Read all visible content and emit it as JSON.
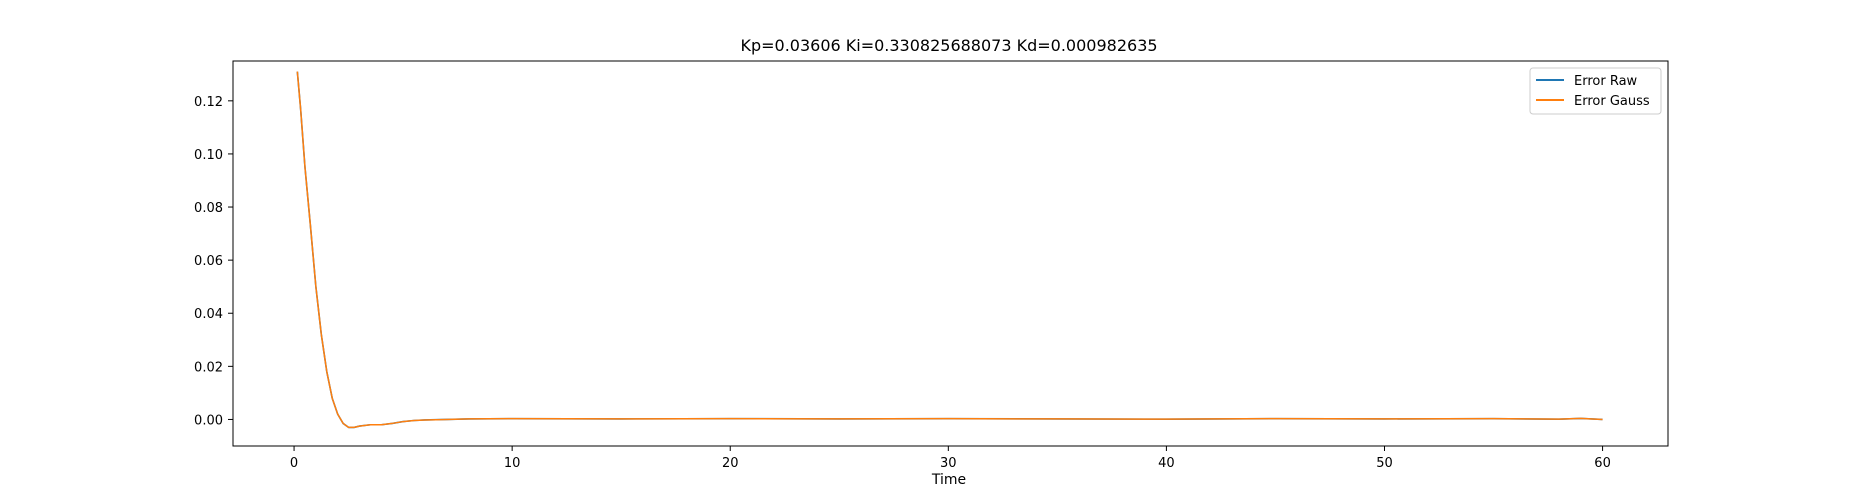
{
  "chart_data": {
    "type": "line",
    "title": "Kp=0.03606 Ki=0.330825688073 Kd=0.000982635",
    "xlabel": "Time",
    "ylabel": "",
    "xlim": [
      -2.8,
      63
    ],
    "ylim": [
      -0.01,
      0.135
    ],
    "grid": false,
    "legend_position": "top-right",
    "x_ticks": [
      0,
      10,
      20,
      30,
      40,
      50,
      60
    ],
    "x_tick_labels": [
      "0",
      "10",
      "20",
      "30",
      "40",
      "50",
      "60"
    ],
    "y_ticks": [
      0.0,
      0.02,
      0.04,
      0.06,
      0.08,
      0.1,
      0.12
    ],
    "y_tick_labels": [
      "0.00",
      "0.02",
      "0.04",
      "0.06",
      "0.08",
      "0.10",
      "0.12"
    ],
    "series": [
      {
        "name": "Error Raw",
        "color": "#1f77b4",
        "x": [
          0.15,
          0.3,
          0.5,
          0.75,
          1.0,
          1.25,
          1.5,
          1.75,
          2.0,
          2.25,
          2.5,
          2.75,
          3.0,
          3.5,
          4.0,
          4.5,
          5.0,
          5.5,
          6.0,
          7.0,
          8.0,
          10.0,
          15.0,
          20.0,
          25.0,
          30.0,
          35.0,
          40.0,
          45.0,
          50.0,
          55.0,
          58.0,
          59.0,
          60.0
        ],
        "y": [
          0.131,
          0.117,
          0.095,
          0.073,
          0.05,
          0.032,
          0.018,
          0.008,
          0.002,
          -0.0015,
          -0.003,
          -0.003,
          -0.0025,
          -0.002,
          -0.002,
          -0.0015,
          -0.0008,
          -0.0004,
          -0.0002,
          0.0,
          0.0002,
          0.0003,
          0.0002,
          0.0003,
          0.0002,
          0.0003,
          0.0002,
          0.0001,
          0.0003,
          0.0002,
          0.0003,
          0.0001,
          0.0004,
          0.0
        ]
      },
      {
        "name": "Error Gauss",
        "color": "#ff7f0e",
        "x": [
          0.15,
          0.3,
          0.5,
          0.75,
          1.0,
          1.25,
          1.5,
          1.75,
          2.0,
          2.25,
          2.5,
          2.75,
          3.0,
          3.5,
          4.0,
          4.5,
          5.0,
          5.5,
          6.0,
          7.0,
          8.0,
          10.0,
          15.0,
          20.0,
          25.0,
          30.0,
          35.0,
          40.0,
          45.0,
          50.0,
          55.0,
          58.0,
          59.0,
          60.0
        ],
        "y": [
          0.131,
          0.117,
          0.095,
          0.073,
          0.05,
          0.032,
          0.018,
          0.008,
          0.002,
          -0.0015,
          -0.003,
          -0.003,
          -0.0025,
          -0.002,
          -0.002,
          -0.0015,
          -0.0008,
          -0.0004,
          -0.0002,
          0.0,
          0.0002,
          0.0003,
          0.0002,
          0.0003,
          0.0002,
          0.0003,
          0.0002,
          0.0001,
          0.0003,
          0.0002,
          0.0003,
          0.0001,
          0.0004,
          0.0
        ]
      }
    ]
  }
}
